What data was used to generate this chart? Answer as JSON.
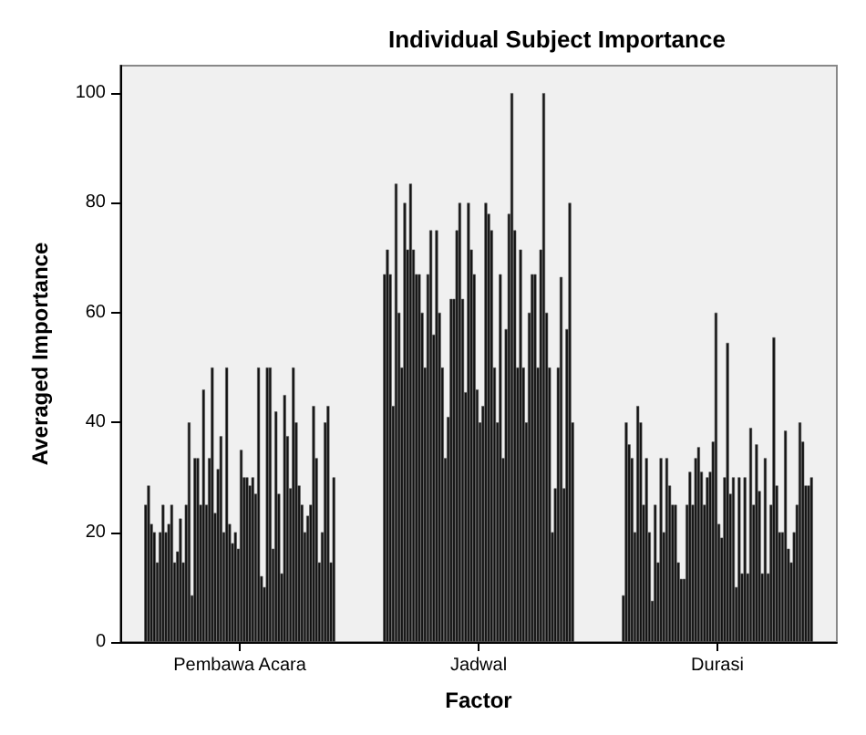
{
  "chart_data": {
    "type": "bar",
    "title": "Individual Subject Importance",
    "xlabel": "Factor",
    "ylabel": "Averaged Importance",
    "categories": [
      "Pembawa Acara",
      "Jadwal",
      "Durasi"
    ],
    "ylim": [
      0,
      105
    ],
    "yticks": [
      0,
      20,
      40,
      60,
      80,
      100
    ],
    "grid": false,
    "series": [
      {
        "color": "#111111",
        "values": [
          25,
          67,
          8.5
        ]
      },
      {
        "color": "#111111",
        "values": [
          28.5,
          71.5,
          40
        ]
      },
      {
        "color": "#111111",
        "values": [
          21.5,
          67,
          36
        ]
      },
      {
        "color": "#111111",
        "values": [
          20,
          43,
          33.5
        ]
      },
      {
        "color": "#111111",
        "values": [
          14.5,
          83.5,
          20
        ]
      },
      {
        "color": "#111111",
        "values": [
          20,
          60,
          43
        ]
      },
      {
        "color": "#111111",
        "values": [
          25,
          50,
          40
        ]
      },
      {
        "color": "#111111",
        "values": [
          20,
          80,
          25
        ]
      },
      {
        "color": "#111111",
        "values": [
          21.5,
          71.5,
          33.5
        ]
      },
      {
        "color": "#111111",
        "values": [
          25,
          83.5,
          20
        ]
      },
      {
        "color": "#111111",
        "values": [
          14.5,
          71.5,
          7.5
        ]
      },
      {
        "color": "#111111",
        "values": [
          16.5,
          67,
          25
        ]
      },
      {
        "color": "#111111",
        "values": [
          22.5,
          67,
          14.5
        ]
      },
      {
        "color": "#111111",
        "values": [
          14.5,
          60,
          33.5
        ]
      },
      {
        "color": "#111111",
        "values": [
          25,
          50,
          20
        ]
      },
      {
        "color": "#111111",
        "values": [
          40,
          67,
          33.5
        ]
      },
      {
        "color": "#111111",
        "values": [
          8.5,
          75,
          28.5
        ]
      },
      {
        "color": "#111111",
        "values": [
          33.5,
          56,
          25
        ]
      },
      {
        "color": "#111111",
        "values": [
          33.5,
          75,
          25
        ]
      },
      {
        "color": "#111111",
        "values": [
          25,
          60,
          14.5
        ]
      },
      {
        "color": "#111111",
        "values": [
          46,
          50,
          11.5
        ]
      },
      {
        "color": "#111111",
        "values": [
          25,
          33.5,
          11.5
        ]
      },
      {
        "color": "#111111",
        "values": [
          33.5,
          41,
          25
        ]
      },
      {
        "color": "#111111",
        "values": [
          50,
          62.5,
          31
        ]
      },
      {
        "color": "#111111",
        "values": [
          23.5,
          62.5,
          25
        ]
      },
      {
        "color": "#111111",
        "values": [
          31.5,
          75,
          33.5
        ]
      },
      {
        "color": "#111111",
        "values": [
          37.5,
          80,
          35.5
        ]
      },
      {
        "color": "#111111",
        "values": [
          20,
          62.5,
          31
        ]
      },
      {
        "color": "#111111",
        "values": [
          50,
          45.5,
          25
        ]
      },
      {
        "color": "#111111",
        "values": [
          21.5,
          80,
          30
        ]
      },
      {
        "color": "#111111",
        "values": [
          18,
          71.5,
          31
        ]
      },
      {
        "color": "#111111",
        "values": [
          20,
          67,
          36.5
        ]
      },
      {
        "color": "#111111",
        "values": [
          17,
          46,
          60
        ]
      },
      {
        "color": "#111111",
        "values": [
          35,
          40,
          21.5
        ]
      },
      {
        "color": "#111111",
        "values": [
          30,
          43,
          19
        ]
      },
      {
        "color": "#111111",
        "values": [
          30,
          80,
          30
        ]
      },
      {
        "color": "#111111",
        "values": [
          28.5,
          78,
          54.5
        ]
      },
      {
        "color": "#111111",
        "values": [
          30,
          75,
          27
        ]
      },
      {
        "color": "#111111",
        "values": [
          27,
          50,
          30
        ]
      },
      {
        "color": "#111111",
        "values": [
          50,
          40,
          10
        ]
      },
      {
        "color": "#111111",
        "values": [
          12,
          67,
          30
        ]
      },
      {
        "color": "#111111",
        "values": [
          10,
          33.5,
          12.5
        ]
      },
      {
        "color": "#111111",
        "values": [
          50,
          57,
          30
        ]
      },
      {
        "color": "#111111",
        "values": [
          50,
          78,
          12.5
        ]
      },
      {
        "color": "#111111",
        "values": [
          17,
          100,
          39
        ]
      },
      {
        "color": "#111111",
        "values": [
          42,
          75,
          25
        ]
      },
      {
        "color": "#111111",
        "values": [
          27,
          50,
          36
        ]
      },
      {
        "color": "#111111",
        "values": [
          12.5,
          71.5,
          27.5
        ]
      },
      {
        "color": "#111111",
        "values": [
          45,
          50,
          12.5
        ]
      },
      {
        "color": "#111111",
        "values": [
          37.5,
          40,
          33.5
        ]
      },
      {
        "color": "#111111",
        "values": [
          28,
          60,
          12.5
        ]
      },
      {
        "color": "#111111",
        "values": [
          50,
          67,
          25
        ]
      },
      {
        "color": "#111111",
        "values": [
          40,
          67,
          55.5
        ]
      },
      {
        "color": "#111111",
        "values": [
          28.5,
          50,
          28.5
        ]
      },
      {
        "color": "#111111",
        "values": [
          25,
          71.5,
          20
        ]
      },
      {
        "color": "#111111",
        "values": [
          20,
          100,
          20
        ]
      },
      {
        "color": "#111111",
        "values": [
          23,
          60,
          38.5
        ]
      },
      {
        "color": "#111111",
        "values": [
          25,
          50,
          17
        ]
      },
      {
        "color": "#111111",
        "values": [
          43,
          20,
          14.5
        ]
      },
      {
        "color": "#111111",
        "values": [
          33.5,
          28,
          20
        ]
      },
      {
        "color": "#111111",
        "values": [
          14.5,
          50,
          25
        ]
      },
      {
        "color": "#111111",
        "values": [
          20,
          66.5,
          40
        ]
      },
      {
        "color": "#111111",
        "values": [
          40,
          28,
          36.5
        ]
      },
      {
        "color": "#111111",
        "values": [
          43,
          57,
          28.5
        ]
      },
      {
        "color": "#111111",
        "values": [
          14.5,
          80,
          28.5
        ]
      },
      {
        "color": "#111111",
        "values": [
          30,
          40,
          30
        ]
      }
    ]
  }
}
